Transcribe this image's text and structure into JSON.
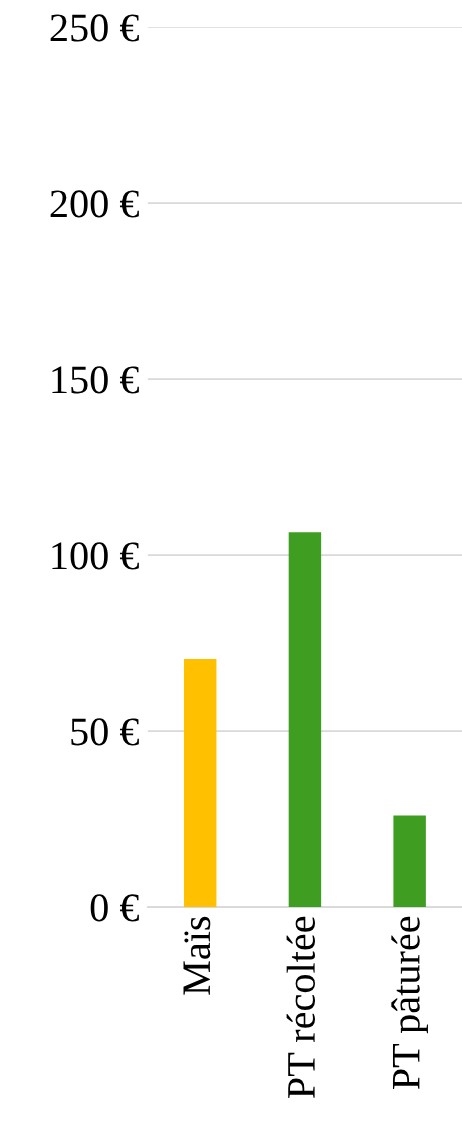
{
  "chart_data": {
    "type": "bar",
    "categories": [
      "Maïs",
      "PT récoltée",
      "PT pâturée"
    ],
    "values": [
      70.5,
      106.5,
      26
    ],
    "colors": [
      "#ffc000",
      "#3f9e22",
      "#3f9e22"
    ],
    "ylim": [
      0,
      250
    ],
    "yticks": [
      {
        "value": 0,
        "label": "0 €"
      },
      {
        "value": 50,
        "label": "50 €"
      },
      {
        "value": 100,
        "label": "100 €"
      },
      {
        "value": 150,
        "label": "150 €"
      },
      {
        "value": 200,
        "label": "200 €"
      },
      {
        "value": 250,
        "label": "250 €"
      }
    ],
    "grid": "y",
    "legend": false
  }
}
